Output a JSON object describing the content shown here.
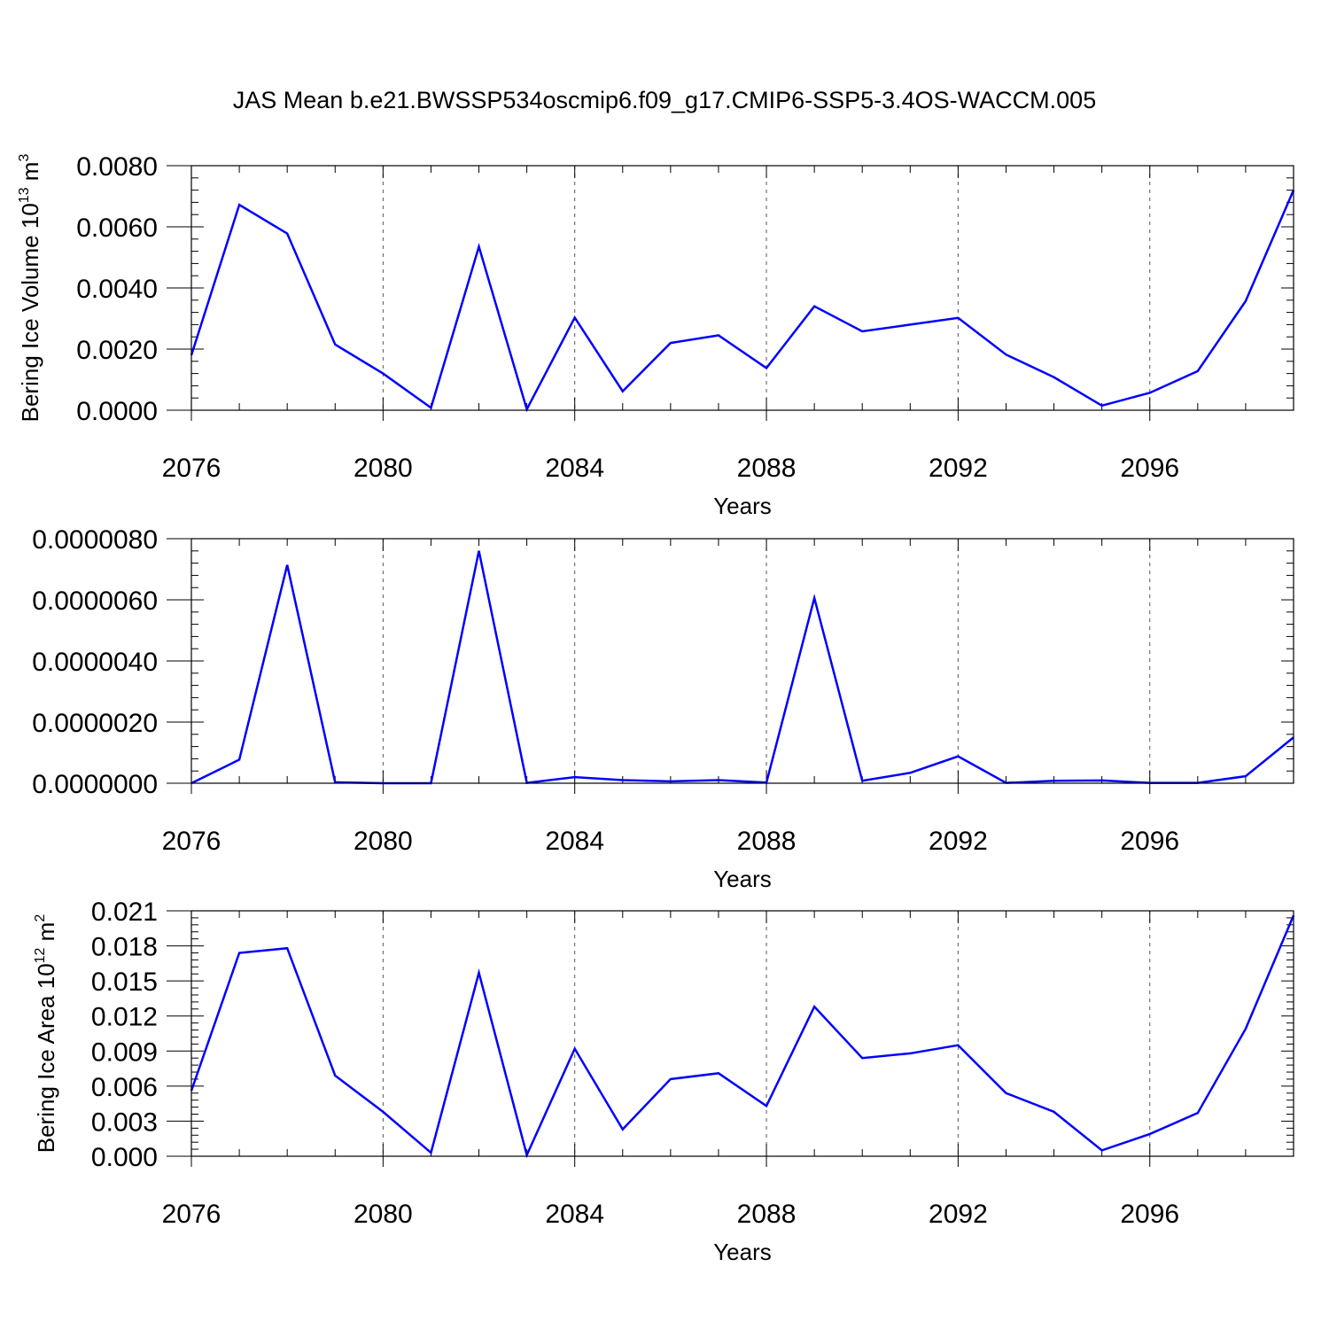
{
  "title": "JAS Mean b.e21.BWSSP534oscmip6.f09_g17.CMIP6-SSP5-3.4OS-WACCM.005",
  "colors": {
    "line": "#0000ff",
    "axis": "#000000",
    "grid": "#555555"
  },
  "chart_data": [
    {
      "type": "line",
      "ylabel_main": "Bering Ice Volume 10",
      "ylabel_sup": "13",
      "ylabel_tail": " m",
      "ylabel_unit_sup": "3",
      "xlabel": "Years",
      "xlim": [
        2076,
        2099
      ],
      "ylim": [
        0,
        0.008
      ],
      "xticks": [
        2076,
        2080,
        2084,
        2088,
        2092,
        2096
      ],
      "yticks": [
        0,
        0.002,
        0.004,
        0.006,
        0.008
      ],
      "ytick_labels": [
        "0.0000",
        "0.0020",
        "0.0040",
        "0.0060",
        "0.0080"
      ],
      "x": [
        2076,
        2077,
        2078,
        2079,
        2080,
        2081,
        2082,
        2083,
        2084,
        2085,
        2086,
        2087,
        2088,
        2089,
        2090,
        2091,
        2092,
        2093,
        2094,
        2095,
        2096,
        2097,
        2098,
        2099
      ],
      "values": [
        0.0018,
        0.00672,
        0.00578,
        0.00215,
        0.0012,
        8e-05,
        0.00535,
        3e-05,
        0.00303,
        0.00062,
        0.0022,
        0.00245,
        0.00138,
        0.0034,
        0.00258,
        0.0028,
        0.00302,
        0.00182,
        0.00108,
        0.00015,
        0.00057,
        0.00128,
        0.00357,
        0.0072
      ],
      "grid": "vertical dashed at major x ticks"
    },
    {
      "type": "line",
      "ylabel_main": "",
      "ylabel_sup": "",
      "ylabel_tail": "",
      "ylabel_unit_sup": "",
      "xlabel": "Years",
      "xlim": [
        2076,
        2099
      ],
      "ylim": [
        0,
        8e-06
      ],
      "xticks": [
        2076,
        2080,
        2084,
        2088,
        2092,
        2096
      ],
      "yticks": [
        0,
        2e-06,
        4e-06,
        6e-06,
        8e-06
      ],
      "ytick_labels": [
        "0.0000000",
        "0.0000020",
        "0.0000040",
        "0.0000060",
        "0.0000080"
      ],
      "x": [
        2076,
        2077,
        2078,
        2079,
        2080,
        2081,
        2082,
        2083,
        2084,
        2085,
        2086,
        2087,
        2088,
        2089,
        2090,
        2091,
        2092,
        2093,
        2094,
        2095,
        2096,
        2097,
        2098,
        2099
      ],
      "values": [
        0.0,
        7.7e-07,
        7.14e-06,
        3e-08,
        0.0,
        0.0,
        7.6e-06,
        1e-08,
        2e-07,
        1e-07,
        6e-08,
        1e-07,
        2e-08,
        6.06e-06,
        8e-08,
        3.4e-07,
        8.8e-07,
        1e-08,
        8e-08,
        9e-08,
        1e-08,
        1e-08,
        2.3e-07,
        1.5e-06
      ],
      "grid": "vertical dashed at major x ticks"
    },
    {
      "type": "line",
      "ylabel_main": "Bering Ice Area 10",
      "ylabel_sup": "12",
      "ylabel_tail": " m",
      "ylabel_unit_sup": "2",
      "xlabel": "Years",
      "xlim": [
        2076,
        2099
      ],
      "ylim": [
        0,
        0.021
      ],
      "xticks": [
        2076,
        2080,
        2084,
        2088,
        2092,
        2096
      ],
      "yticks": [
        0,
        0.003,
        0.006,
        0.009,
        0.012,
        0.015,
        0.018,
        0.021
      ],
      "ytick_labels": [
        "0.000",
        "0.003",
        "0.006",
        "0.009",
        "0.012",
        "0.015",
        "0.018",
        "0.021"
      ],
      "x": [
        2076,
        2077,
        2078,
        2079,
        2080,
        2081,
        2082,
        2083,
        2084,
        2085,
        2086,
        2087,
        2088,
        2089,
        2090,
        2091,
        2092,
        2093,
        2094,
        2095,
        2096,
        2097,
        2098,
        2099
      ],
      "values": [
        0.0056,
        0.0174,
        0.0178,
        0.0069,
        0.0038,
        0.0003,
        0.0157,
        0.0001,
        0.0092,
        0.0023,
        0.0066,
        0.0071,
        0.0043,
        0.0128,
        0.0084,
        0.0088,
        0.0095,
        0.0054,
        0.0038,
        0.0005,
        0.0019,
        0.0037,
        0.0109,
        0.0206
      ],
      "grid": "vertical dashed at major x ticks"
    }
  ]
}
